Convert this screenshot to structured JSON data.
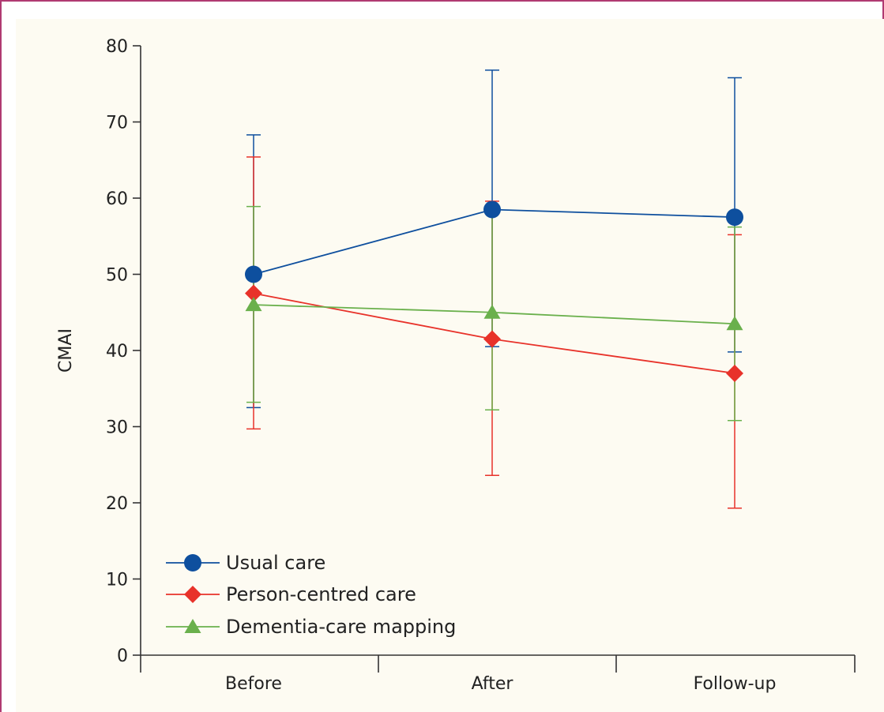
{
  "chart_data": {
    "type": "line",
    "title": "",
    "xlabel": "",
    "ylabel": "CMAI",
    "categories": [
      "Before",
      "After",
      "Follow-up"
    ],
    "ylim": [
      0,
      80
    ],
    "yticks": [
      0,
      10,
      20,
      30,
      40,
      50,
      60,
      70,
      80
    ],
    "grid": false,
    "legend_position": "bottom-left",
    "series": [
      {
        "name": "Usual care",
        "marker": "circle",
        "color": "#0e4f9e",
        "values": [
          50,
          58.5,
          57.5
        ],
        "error_low": [
          32.5,
          40.5,
          39.8
        ],
        "error_high": [
          68.3,
          76.8,
          75.8
        ]
      },
      {
        "name": "Person-centred care",
        "marker": "diamond",
        "color": "#e8322a",
        "values": [
          47.5,
          41.5,
          37
        ],
        "error_low": [
          29.7,
          23.6,
          19.3
        ],
        "error_high": [
          65.4,
          59.6,
          55.2
        ]
      },
      {
        "name": "Dementia-care mapping",
        "marker": "triangle",
        "color": "#6ab04c",
        "values": [
          46,
          45,
          43.5
        ],
        "error_low": [
          33.2,
          32.2,
          30.8
        ],
        "error_high": [
          58.9,
          58.1,
          56.2
        ]
      }
    ]
  }
}
